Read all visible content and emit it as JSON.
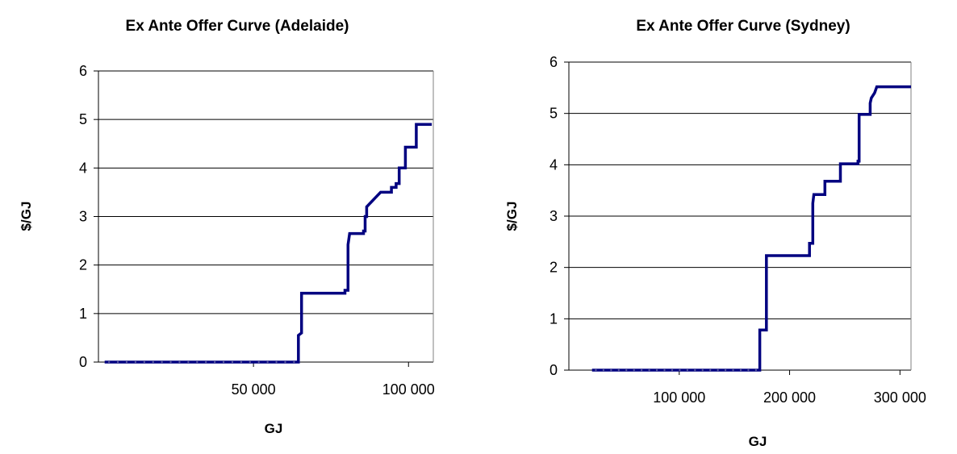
{
  "chart_data": [
    {
      "type": "line",
      "title": "Ex Ante Offer Curve (Adelaide)",
      "xlabel": "GJ",
      "ylabel": "$/GJ",
      "xlim": [
        0,
        108000
      ],
      "ylim": [
        0,
        6
      ],
      "x_ticks": [
        50000,
        100000
      ],
      "x_tick_labels": [
        "50 000",
        "100 000"
      ],
      "y_ticks": [
        0,
        1,
        2,
        3,
        4,
        5,
        6
      ],
      "y_tick_labels": [
        "0",
        "1",
        "2",
        "3",
        "4",
        "5",
        "6"
      ],
      "grid": "horizontal",
      "legend": "none",
      "series": [
        {
          "color": "#000080",
          "step": true,
          "points": [
            [
              2000,
              0.0
            ],
            [
              64500,
              0.0
            ],
            [
              64500,
              0.55
            ],
            [
              65500,
              0.6
            ],
            [
              65500,
              1.42
            ],
            [
              79500,
              1.42
            ],
            [
              79500,
              1.48
            ],
            [
              80500,
              1.48
            ],
            [
              80500,
              2.42
            ],
            [
              81000,
              2.65
            ],
            [
              85500,
              2.65
            ],
            [
              85500,
              2.7
            ],
            [
              86000,
              2.7
            ],
            [
              86000,
              3.0
            ],
            [
              86500,
              3.0
            ],
            [
              86500,
              3.2
            ],
            [
              88000,
              3.3
            ],
            [
              89500,
              3.4
            ],
            [
              91000,
              3.5
            ],
            [
              94500,
              3.5
            ],
            [
              94500,
              3.6
            ],
            [
              96000,
              3.6
            ],
            [
              96000,
              3.68
            ],
            [
              97000,
              3.68
            ],
            [
              97000,
              4.0
            ],
            [
              99000,
              4.0
            ],
            [
              99000,
              4.43
            ],
            [
              102500,
              4.43
            ],
            [
              102500,
              4.9
            ],
            [
              107500,
              4.9
            ]
          ]
        }
      ]
    },
    {
      "type": "line",
      "title": "Ex Ante Offer Curve (Sydney)",
      "xlabel": "GJ",
      "ylabel": "$/GJ",
      "xlim": [
        0,
        310000
      ],
      "ylim": [
        0,
        6
      ],
      "x_ticks": [
        100000,
        200000,
        300000
      ],
      "x_tick_labels": [
        "100 000",
        "200 000",
        "300 000"
      ],
      "y_ticks": [
        0,
        1,
        2,
        3,
        4,
        5,
        6
      ],
      "y_tick_labels": [
        "0",
        "1",
        "2",
        "3",
        "4",
        "5",
        "6"
      ],
      "grid": "horizontal",
      "legend": "none",
      "series": [
        {
          "color": "#000080",
          "step": true,
          "points": [
            [
              21000,
              0.0
            ],
            [
              173000,
              0.0
            ],
            [
              173000,
              0.78
            ],
            [
              179000,
              0.78
            ],
            [
              179000,
              2.23
            ],
            [
              218000,
              2.23
            ],
            [
              218000,
              2.47
            ],
            [
              221000,
              2.47
            ],
            [
              221000,
              3.25
            ],
            [
              222000,
              3.42
            ],
            [
              232000,
              3.42
            ],
            [
              232000,
              3.68
            ],
            [
              246000,
              3.68
            ],
            [
              246000,
              4.02
            ],
            [
              262000,
              4.02
            ],
            [
              262000,
              4.07
            ],
            [
              263000,
              4.07
            ],
            [
              263000,
              4.98
            ],
            [
              273000,
              4.98
            ],
            [
              273000,
              5.2
            ],
            [
              274000,
              5.3
            ],
            [
              277000,
              5.4
            ],
            [
              279000,
              5.52
            ],
            [
              310000,
              5.52
            ]
          ]
        }
      ]
    }
  ]
}
